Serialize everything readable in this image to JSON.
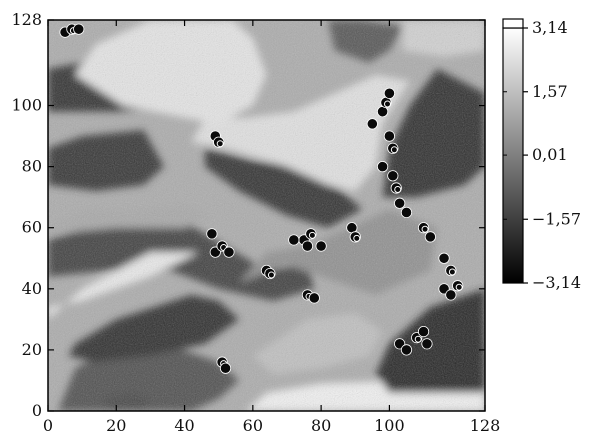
{
  "chart_data": {
    "type": "heatmap",
    "title": "",
    "xlabel": "",
    "ylabel": "",
    "xlim": [
      0,
      128
    ],
    "ylim": [
      0,
      128
    ],
    "x_ticks": [
      "0",
      "20",
      "40",
      "60",
      "80",
      "100",
      "128"
    ],
    "x_tick_values": [
      0,
      20,
      40,
      60,
      80,
      100,
      128
    ],
    "y_ticks": [
      "0",
      "20",
      "40",
      "60",
      "80",
      "100",
      "128"
    ],
    "y_tick_values": [
      0,
      20,
      40,
      60,
      80,
      100,
      128
    ],
    "colormap": "grayscale (black = -3.14, white = 3.14)",
    "color_range": [
      -3.14,
      3.14
    ],
    "colorbar_ticks": [
      "3,14",
      "1,57",
      "0,01",
      "−1,57",
      "−3,14"
    ],
    "colorbar_tick_values": [
      3.14,
      1.57,
      0.01,
      -1.57,
      -3.14
    ],
    "grid": false,
    "colors": {
      "low": "#000000",
      "high": "#ffffff",
      "axis": "#000000"
    },
    "field_regions": [
      {
        "shape": "poly",
        "value": -1.2,
        "points": [
          [
            3,
            0
          ],
          [
            42,
            0
          ],
          [
            50,
            4
          ],
          [
            56,
            10
          ],
          [
            50,
            16
          ],
          [
            34,
            22
          ],
          [
            18,
            20
          ],
          [
            8,
            14
          ]
        ]
      },
      {
        "shape": "poly",
        "value": 2.8,
        "points": [
          [
            58,
            0
          ],
          [
            128,
            0
          ],
          [
            128,
            6
          ],
          [
            106,
            10
          ],
          [
            80,
            9
          ],
          [
            64,
            6
          ]
        ]
      },
      {
        "shape": "poly",
        "value": -2.0,
        "points": [
          [
            8,
            22
          ],
          [
            20,
            30
          ],
          [
            42,
            38
          ],
          [
            50,
            36
          ],
          [
            56,
            30
          ],
          [
            46,
            22
          ],
          [
            30,
            18
          ],
          [
            14,
            16
          ],
          [
            6,
            18
          ]
        ]
      },
      {
        "shape": "poly",
        "value": -2.2,
        "points": [
          [
            100,
            6
          ],
          [
            128,
            6
          ],
          [
            128,
            40
          ],
          [
            112,
            34
          ],
          [
            100,
            22
          ],
          [
            96,
            12
          ]
        ]
      },
      {
        "shape": "poly",
        "value": -1.6,
        "points": [
          [
            0,
            56
          ],
          [
            18,
            62
          ],
          [
            40,
            62
          ],
          [
            52,
            54
          ],
          [
            64,
            46
          ],
          [
            76,
            48
          ],
          [
            78,
            40
          ],
          [
            66,
            36
          ],
          [
            50,
            40
          ],
          [
            36,
            46
          ],
          [
            18,
            46
          ],
          [
            0,
            44
          ]
        ]
      },
      {
        "shape": "poly",
        "value": -1.8,
        "points": [
          [
            0,
            74
          ],
          [
            14,
            72
          ],
          [
            28,
            74
          ],
          [
            34,
            80
          ],
          [
            28,
            92
          ],
          [
            10,
            90
          ],
          [
            0,
            86
          ]
        ]
      },
      {
        "shape": "poly",
        "value": -1.9,
        "points": [
          [
            0,
            98
          ],
          [
            20,
            98
          ],
          [
            40,
            100
          ],
          [
            56,
            106
          ],
          [
            60,
            116
          ],
          [
            48,
            122
          ],
          [
            34,
            124
          ],
          [
            20,
            116
          ],
          [
            0,
            112
          ]
        ]
      },
      {
        "shape": "poly",
        "value": -1.9,
        "points": [
          [
            46,
            86
          ],
          [
            60,
            82
          ],
          [
            74,
            80
          ],
          [
            86,
            72
          ],
          [
            92,
            66
          ],
          [
            82,
            60
          ],
          [
            70,
            64
          ],
          [
            56,
            72
          ],
          [
            46,
            80
          ]
        ]
      },
      {
        "shape": "poly",
        "value": -2.0,
        "points": [
          [
            98,
            70
          ],
          [
            108,
            70
          ],
          [
            122,
            74
          ],
          [
            128,
            80
          ],
          [
            128,
            104
          ],
          [
            114,
            112
          ],
          [
            106,
            100
          ],
          [
            100,
            86
          ]
        ]
      },
      {
        "shape": "poly",
        "value": -1.0,
        "points": [
          [
            84,
            118
          ],
          [
            94,
            114
          ],
          [
            100,
            118
          ],
          [
            104,
            126
          ],
          [
            92,
            128
          ],
          [
            82,
            128
          ]
        ]
      },
      {
        "shape": "poly",
        "value": 2.6,
        "points": [
          [
            0,
            30
          ],
          [
            10,
            40
          ],
          [
            30,
            52
          ],
          [
            44,
            52
          ],
          [
            30,
            44
          ],
          [
            10,
            36
          ],
          [
            0,
            34
          ]
        ]
      },
      {
        "shape": "poly",
        "value": 2.4,
        "points": [
          [
            42,
            88
          ],
          [
            52,
            86
          ],
          [
            70,
            80
          ],
          [
            82,
            74
          ],
          [
            90,
            72
          ],
          [
            96,
            80
          ],
          [
            98,
            94
          ],
          [
            106,
            108
          ],
          [
            96,
            110
          ],
          [
            84,
            104
          ],
          [
            72,
            98
          ],
          [
            58,
            96
          ],
          [
            46,
            96
          ]
        ]
      },
      {
        "shape": "poly",
        "value": 2.5,
        "points": [
          [
            22,
            100
          ],
          [
            40,
            96
          ],
          [
            50,
            94
          ],
          [
            60,
            100
          ],
          [
            64,
            110
          ],
          [
            60,
            122
          ],
          [
            54,
            128
          ],
          [
            30,
            128
          ],
          [
            14,
            120
          ],
          [
            8,
            110
          ]
        ]
      },
      {
        "shape": "poly",
        "value": 0.4,
        "points": [
          [
            56,
            42
          ],
          [
            70,
            48
          ],
          [
            80,
            44
          ],
          [
            96,
            38
          ],
          [
            112,
            46
          ],
          [
            114,
            60
          ],
          [
            100,
            66
          ],
          [
            88,
            60
          ],
          [
            76,
            54
          ],
          [
            64,
            52
          ]
        ]
      },
      {
        "shape": "poly",
        "value": 1.6,
        "points": [
          [
            60,
            18
          ],
          [
            76,
            30
          ],
          [
            90,
            32
          ],
          [
            98,
            26
          ],
          [
            94,
            18
          ],
          [
            80,
            14
          ],
          [
            66,
            12
          ]
        ]
      },
      {
        "shape": "poly",
        "value": 1.0,
        "points": [
          [
            0,
            60
          ],
          [
            10,
            66
          ],
          [
            28,
            66
          ],
          [
            40,
            68
          ],
          [
            48,
            64
          ],
          [
            40,
            60
          ],
          [
            20,
            60
          ],
          [
            0,
            58
          ]
        ]
      },
      {
        "shape": "poly",
        "value": 2.0,
        "points": [
          [
            104,
            118
          ],
          [
            116,
            116
          ],
          [
            128,
            118
          ],
          [
            128,
            128
          ],
          [
            104,
            128
          ]
        ]
      },
      {
        "shape": "poly",
        "value": -1.4,
        "points": [
          [
            18,
            0
          ],
          [
            28,
            0
          ],
          [
            30,
            4
          ],
          [
            24,
            6
          ],
          [
            16,
            4
          ]
        ]
      }
    ],
    "vortex_points": [
      {
        "x": 5,
        "y": 124
      },
      {
        "x": 7,
        "y": 125
      },
      {
        "x": 9,
        "y": 125
      },
      {
        "x": 49,
        "y": 90
      },
      {
        "x": 50,
        "y": 88
      },
      {
        "x": 48,
        "y": 58
      },
      {
        "x": 49,
        "y": 52
      },
      {
        "x": 51,
        "y": 54
      },
      {
        "x": 53,
        "y": 52
      },
      {
        "x": 64,
        "y": 46
      },
      {
        "x": 65,
        "y": 45
      },
      {
        "x": 75,
        "y": 56
      },
      {
        "x": 76,
        "y": 54
      },
      {
        "x": 77,
        "y": 58
      },
      {
        "x": 80,
        "y": 54
      },
      {
        "x": 72,
        "y": 56
      },
      {
        "x": 76,
        "y": 38
      },
      {
        "x": 78,
        "y": 37
      },
      {
        "x": 89,
        "y": 60
      },
      {
        "x": 90,
        "y": 57
      },
      {
        "x": 95,
        "y": 94
      },
      {
        "x": 98,
        "y": 98
      },
      {
        "x": 99,
        "y": 101
      },
      {
        "x": 100,
        "y": 104
      },
      {
        "x": 100,
        "y": 90
      },
      {
        "x": 101,
        "y": 86
      },
      {
        "x": 98,
        "y": 80
      },
      {
        "x": 101,
        "y": 77
      },
      {
        "x": 102,
        "y": 73
      },
      {
        "x": 103,
        "y": 68
      },
      {
        "x": 105,
        "y": 65
      },
      {
        "x": 110,
        "y": 60
      },
      {
        "x": 112,
        "y": 57
      },
      {
        "x": 116,
        "y": 50
      },
      {
        "x": 118,
        "y": 46
      },
      {
        "x": 116,
        "y": 40
      },
      {
        "x": 118,
        "y": 38
      },
      {
        "x": 120,
        "y": 41
      },
      {
        "x": 103,
        "y": 22
      },
      {
        "x": 105,
        "y": 20
      },
      {
        "x": 108,
        "y": 24
      },
      {
        "x": 110,
        "y": 26
      },
      {
        "x": 111,
        "y": 22
      },
      {
        "x": 51,
        "y": 16
      },
      {
        "x": 52,
        "y": 14
      }
    ]
  }
}
